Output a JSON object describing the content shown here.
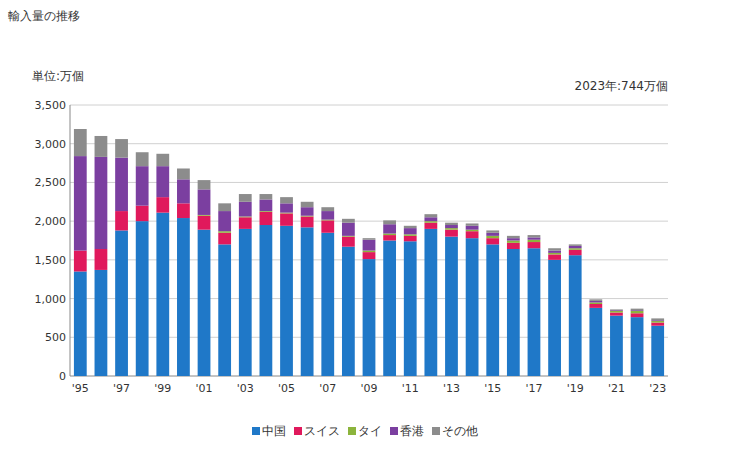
{
  "chart_data": {
    "type": "bar",
    "stacked": true,
    "title": "輸入量の推移",
    "ylabel": "単位:万個",
    "annotation": "2023年:744万個",
    "categories": [
      "'95",
      null,
      "'97",
      null,
      "'99",
      null,
      "'01",
      null,
      "'03",
      null,
      "'05",
      null,
      "'07",
      null,
      "'09",
      null,
      "'11",
      null,
      "'13",
      null,
      "'15",
      null,
      "'17",
      null,
      "'19",
      null,
      "'21",
      null,
      "'23"
    ],
    "series": [
      {
        "name": "中国",
        "color": "#1f78c8",
        "values": [
          1350,
          1370,
          1880,
          2000,
          2110,
          2040,
          1890,
          1700,
          1900,
          1950,
          1940,
          1920,
          1850,
          1670,
          1510,
          1750,
          1740,
          1900,
          1800,
          1780,
          1700,
          1640,
          1650,
          1500,
          1560,
          880,
          780,
          760,
          650
        ]
      },
      {
        "name": "スイス",
        "color": "#e0195c",
        "values": [
          270,
          270,
          250,
          200,
          200,
          190,
          180,
          150,
          150,
          170,
          160,
          140,
          160,
          130,
          90,
          70,
          70,
          80,
          90,
          90,
          80,
          80,
          80,
          70,
          70,
          50,
          40,
          50,
          40
        ]
      },
      {
        "name": "タイ",
        "color": "#8cb43c",
        "values": [
          0,
          0,
          0,
          0,
          0,
          0,
          10,
          20,
          10,
          10,
          10,
          10,
          10,
          10,
          20,
          20,
          20,
          20,
          20,
          20,
          30,
          30,
          30,
          20,
          20,
          20,
          20,
          30,
          20
        ]
      },
      {
        "name": "香港",
        "color": "#7b3fa0",
        "values": [
          1220,
          1190,
          690,
          510,
          400,
          310,
          330,
          260,
          190,
          150,
          120,
          110,
          110,
          170,
          140,
          120,
          80,
          50,
          40,
          50,
          40,
          30,
          30,
          30,
          30,
          20,
          10,
          10,
          10
        ]
      },
      {
        "name": "その他",
        "color": "#8c8c8c",
        "values": [
          350,
          270,
          240,
          180,
          160,
          140,
          120,
          100,
          100,
          70,
          80,
          70,
          50,
          50,
          20,
          50,
          30,
          40,
          30,
          30,
          30,
          30,
          30,
          30,
          20,
          20,
          10,
          20,
          24
        ]
      }
    ],
    "ylim": [
      0,
      3500
    ],
    "yticks": [
      0,
      500,
      {
        "value": 1000,
        "label": "1,000"
      },
      {
        "value": 1500,
        "label": "1,500"
      },
      {
        "value": 2000,
        "label": "2,000"
      },
      {
        "value": 2500,
        "label": "2,500"
      },
      {
        "value": 3000,
        "label": "3,000"
      },
      {
        "value": 3500,
        "label": "3,500"
      }
    ],
    "grid": true,
    "legend": "bottom"
  }
}
